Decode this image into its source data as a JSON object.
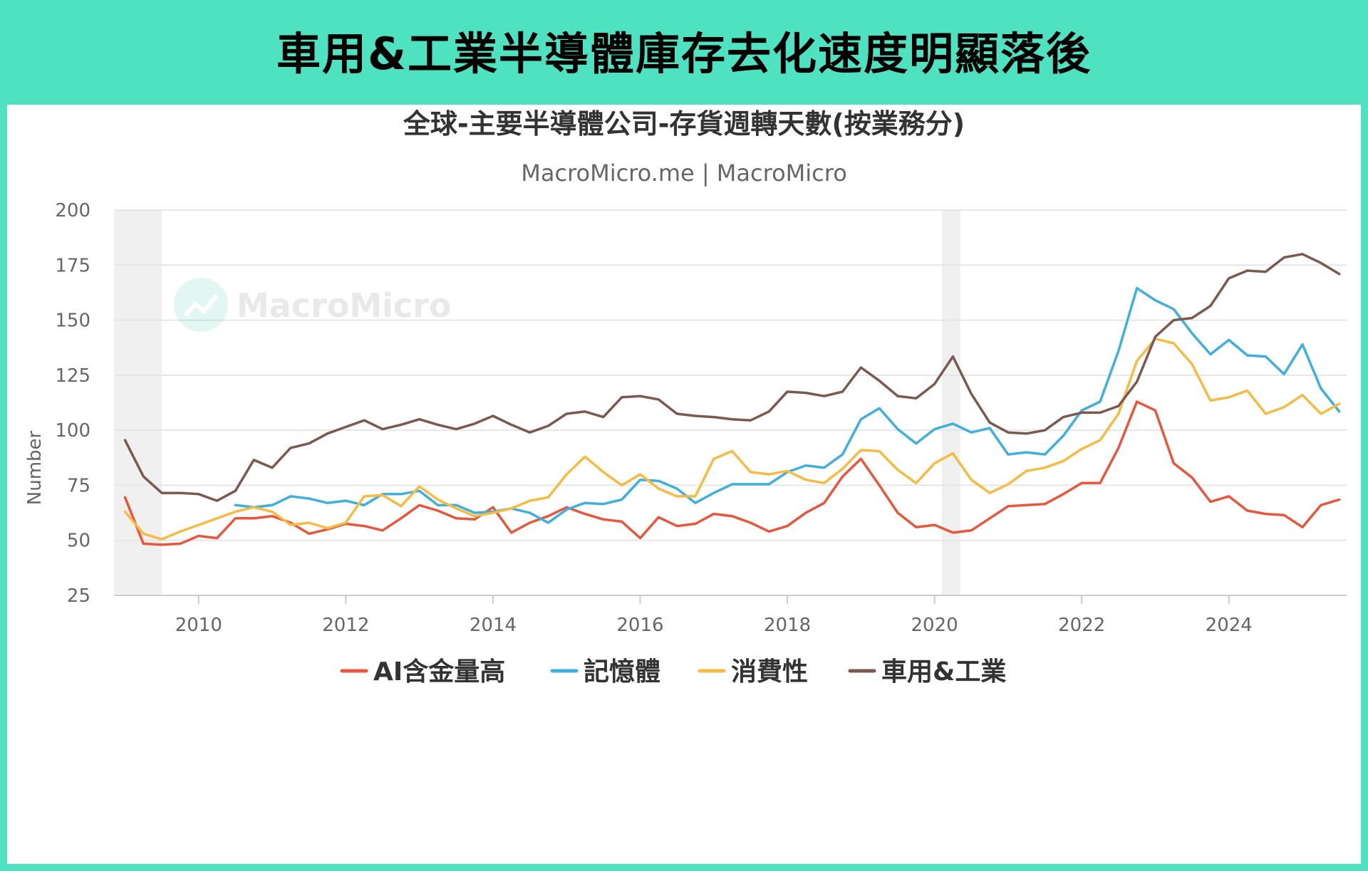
{
  "banner": {
    "title": "車用&工業半導體庫存去化速度明顯落後"
  },
  "chart_data": {
    "type": "line",
    "title": "全球-主要半導體公司-存貨週轉天數(按業務分)",
    "subtitle": "MacroMicro.me | MacroMicro",
    "watermark": "MacroMicro",
    "ylabel": "Number",
    "ylim": [
      25,
      200
    ],
    "yticks": [
      25,
      50,
      75,
      100,
      125,
      150,
      175,
      200
    ],
    "xlim": [
      2008.85,
      2025.6
    ],
    "xticks": [
      2010,
      2012,
      2014,
      2016,
      2018,
      2020,
      2022,
      2024
    ],
    "xtick_labels": [
      "2010",
      "2012",
      "2014",
      "2016",
      "2018",
      "2020",
      "2022",
      "2024"
    ],
    "recessions": [
      [
        2008.85,
        2009.5
      ],
      [
        2020.1,
        2020.35
      ]
    ],
    "grid": true,
    "legend_position": "bottom",
    "series": [
      {
        "name": "AI含金量高",
        "color": "#e8573c",
        "x": [
          2009.0,
          2009.25,
          2009.5,
          2009.75,
          2010.0,
          2010.25,
          2010.5,
          2010.75,
          2011.0,
          2011.25,
          2011.5,
          2011.75,
          2012.0,
          2012.25,
          2012.5,
          2012.75,
          2013.0,
          2013.25,
          2013.5,
          2013.75,
          2014.0,
          2014.25,
          2014.5,
          2014.75,
          2015.0,
          2015.25,
          2015.5,
          2015.75,
          2016.0,
          2016.25,
          2016.5,
          2016.75,
          2017.0,
          2017.25,
          2017.5,
          2017.75,
          2018.0,
          2018.25,
          2018.5,
          2018.75,
          2019.0,
          2019.25,
          2019.5,
          2019.75,
          2020.0,
          2020.25,
          2020.5,
          2020.75,
          2021.0,
          2021.25,
          2021.5,
          2021.75,
          2022.0,
          2022.25,
          2022.5,
          2022.75,
          2023.0,
          2023.25,
          2023.5,
          2023.75,
          2024.0,
          2024.25,
          2024.5,
          2024.75,
          2025.0,
          2025.25,
          2025.5
        ],
        "values": [
          69.5,
          48.5,
          48,
          48.5,
          52,
          51,
          60,
          60,
          61,
          58,
          53,
          55,
          57.5,
          56.5,
          54.5,
          60,
          66,
          63.5,
          60,
          59.5,
          65,
          53.5,
          58,
          61,
          65,
          62,
          59.5,
          58.5,
          51,
          60.5,
          56.5,
          57.5,
          62,
          61,
          58,
          54,
          56.5,
          62.5,
          67,
          79,
          87,
          75,
          62.5,
          56,
          57,
          53.5,
          54.5,
          60,
          65.5,
          66,
          66.5,
          71,
          76,
          76,
          92,
          113,
          109,
          85,
          78.5,
          67.5,
          70,
          63.5,
          62,
          61.5,
          56,
          66,
          68.5
        ]
      },
      {
        "name": "記憶體",
        "color": "#3fb0dd",
        "x": [
          2010.5,
          2010.75,
          2011.0,
          2011.25,
          2011.5,
          2011.75,
          2012.0,
          2012.25,
          2012.5,
          2012.75,
          2013.0,
          2013.25,
          2013.5,
          2013.75,
          2014.0,
          2014.25,
          2014.5,
          2014.75,
          2015.0,
          2015.25,
          2015.5,
          2015.75,
          2016.0,
          2016.25,
          2016.5,
          2016.75,
          2017.0,
          2017.25,
          2017.5,
          2017.75,
          2018.0,
          2018.25,
          2018.5,
          2018.75,
          2019.0,
          2019.25,
          2019.5,
          2019.75,
          2020.0,
          2020.25,
          2020.5,
          2020.75,
          2021.0,
          2021.25,
          2021.5,
          2021.75,
          2022.0,
          2022.25,
          2022.5,
          2022.75,
          2023.0,
          2023.25,
          2023.5,
          2023.75,
          2024.0,
          2024.25,
          2024.5,
          2024.75,
          2025.0,
          2025.25,
          2025.5
        ],
        "values": [
          66,
          65,
          66,
          70,
          69,
          67,
          68,
          66,
          71,
          71,
          72.5,
          66,
          66,
          62.5,
          63,
          64.5,
          62.5,
          58,
          64,
          67,
          66.5,
          68.5,
          77.5,
          77,
          73.5,
          67,
          71.5,
          75.5,
          75.5,
          75.5,
          81,
          84,
          83,
          89,
          105,
          110,
          100.5,
          94,
          100.5,
          103,
          99,
          101,
          89,
          90,
          89,
          97.5,
          109,
          113,
          136,
          164.5,
          159,
          155,
          144,
          134.5,
          141,
          134,
          133.5,
          125.5,
          139,
          119,
          108.5
        ]
      },
      {
        "name": "消費性",
        "color": "#f6bb42",
        "x": [
          2009.0,
          2009.25,
          2009.5,
          2009.75,
          2010.0,
          2010.25,
          2010.5,
          2010.75,
          2011.0,
          2011.25,
          2011.5,
          2011.75,
          2012.0,
          2012.25,
          2012.5,
          2012.75,
          2013.0,
          2013.25,
          2013.5,
          2013.75,
          2014.0,
          2014.25,
          2014.5,
          2014.75,
          2015.0,
          2015.25,
          2015.5,
          2015.75,
          2016.0,
          2016.25,
          2016.5,
          2016.75,
          2017.0,
          2017.25,
          2017.5,
          2017.75,
          2018.0,
          2018.25,
          2018.5,
          2018.75,
          2019.0,
          2019.25,
          2019.5,
          2019.75,
          2020.0,
          2020.25,
          2020.5,
          2020.75,
          2021.0,
          2021.25,
          2021.5,
          2021.75,
          2022.0,
          2022.25,
          2022.5,
          2022.75,
          2023.0,
          2023.25,
          2023.5,
          2023.75,
          2024.0,
          2024.25,
          2024.5,
          2024.75,
          2025.0,
          2025.25,
          2025.5
        ],
        "values": [
          63,
          53,
          50.5,
          54,
          57,
          60,
          63,
          65,
          63,
          57,
          58,
          55.5,
          58,
          70,
          70.5,
          65.5,
          74.5,
          68.5,
          64.5,
          61,
          62.5,
          64.5,
          68,
          69.5,
          80,
          88,
          81,
          75,
          80,
          73.5,
          70,
          70,
          87,
          90.5,
          81,
          80,
          81.5,
          77.5,
          76,
          82.5,
          91,
          90.5,
          82,
          76,
          85,
          89.5,
          77.5,
          71.5,
          75.5,
          81.5,
          83,
          86,
          91.5,
          95.5,
          107.5,
          131.5,
          141.5,
          139.5,
          130,
          113.5,
          115,
          118,
          107.5,
          110.5,
          116,
          107.5,
          112
        ]
      },
      {
        "name": "車用&工業",
        "color": "#7a5a50",
        "x": [
          2009.0,
          2009.25,
          2009.5,
          2009.75,
          2010.0,
          2010.25,
          2010.5,
          2010.75,
          2011.0,
          2011.25,
          2011.5,
          2011.75,
          2012.0,
          2012.25,
          2012.5,
          2012.75,
          2013.0,
          2013.25,
          2013.5,
          2013.75,
          2014.0,
          2014.25,
          2014.5,
          2014.75,
          2015.0,
          2015.25,
          2015.5,
          2015.75,
          2016.0,
          2016.25,
          2016.5,
          2016.75,
          2017.0,
          2017.25,
          2017.5,
          2017.75,
          2018.0,
          2018.25,
          2018.5,
          2018.75,
          2019.0,
          2019.25,
          2019.5,
          2019.75,
          2020.0,
          2020.25,
          2020.5,
          2020.75,
          2021.0,
          2021.25,
          2021.5,
          2021.75,
          2022.0,
          2022.25,
          2022.5,
          2022.75,
          2023.0,
          2023.25,
          2023.5,
          2023.75,
          2024.0,
          2024.25,
          2024.5,
          2024.75,
          2025.0,
          2025.25,
          2025.5
        ],
        "values": [
          95.5,
          79,
          71.5,
          71.5,
          71,
          68,
          72.5,
          86.5,
          83,
          92,
          94,
          98.5,
          101.5,
          104.5,
          100.5,
          102.5,
          105,
          102.5,
          100.5,
          103,
          106.5,
          102.5,
          99,
          102,
          107.5,
          108.5,
          106,
          115,
          115.5,
          114,
          107.5,
          106.5,
          106,
          105,
          104.5,
          108.5,
          117.5,
          117,
          115.5,
          117.5,
          128.5,
          122.5,
          115.5,
          114.5,
          121,
          133.5,
          116.5,
          103.5,
          99,
          98.5,
          100,
          106,
          108,
          108,
          111,
          122,
          142.5,
          150,
          151,
          156.5,
          169,
          172.5,
          172,
          178.5,
          180,
          176,
          171
        ]
      }
    ]
  }
}
